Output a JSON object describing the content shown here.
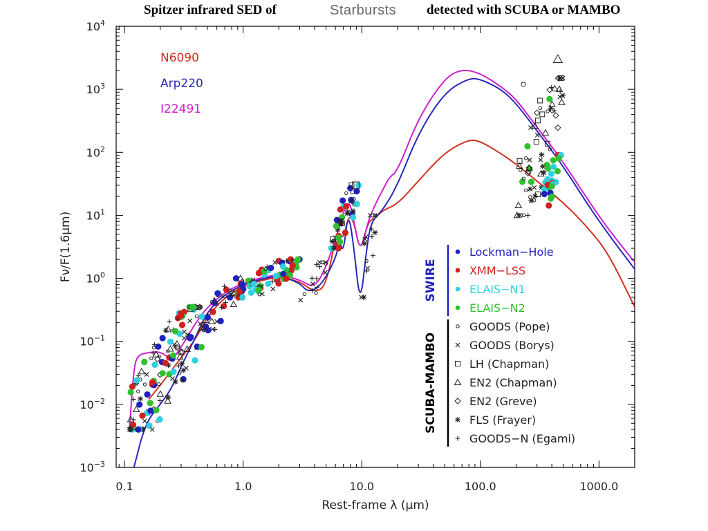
{
  "title": {
    "part1": "Spitzer infrared SED of",
    "part2": "Starbursts",
    "part3": "detected with SCUBA or MAMBO"
  },
  "chart_data": {
    "type": "line",
    "xlabel": "Rest-frame λ (μm)",
    "ylabel": "Fν/F(1.6μm)",
    "xscale": "log",
    "yscale": "log",
    "xlim": [
      0.085,
      2000
    ],
    "ylim": [
      0.001,
      10000
    ],
    "xticks": [
      {
        "value": 0.1,
        "label": "0.1"
      },
      {
        "value": 1,
        "label": "1.0"
      },
      {
        "value": 10,
        "label": "10.0"
      },
      {
        "value": 100,
        "label": "100.0"
      },
      {
        "value": 1000,
        "label": "1000.0"
      }
    ],
    "yticks": [
      {
        "value": 0.001,
        "base": "10",
        "exp": "−3"
      },
      {
        "value": 0.01,
        "base": "10",
        "exp": "−2"
      },
      {
        "value": 0.1,
        "base": "10",
        "exp": "−1"
      },
      {
        "value": 1,
        "base": "10",
        "exp": "0"
      },
      {
        "value": 10,
        "base": "10",
        "exp": "1"
      },
      {
        "value": 100,
        "base": "10",
        "exp": "2"
      },
      {
        "value": 1000,
        "base": "10",
        "exp": "3"
      },
      {
        "value": 10000,
        "base": "10",
        "exp": "4"
      }
    ],
    "series": [
      {
        "name": "N6090",
        "color": "#d03020",
        "points": [
          [
            0.16,
            0.012
          ],
          [
            0.2,
            0.02
          ],
          [
            0.25,
            0.035
          ],
          [
            0.3,
            0.055
          ],
          [
            0.4,
            0.11
          ],
          [
            0.5,
            0.25
          ],
          [
            0.7,
            0.5
          ],
          [
            1.0,
            0.75
          ],
          [
            1.5,
            0.95
          ],
          [
            2.0,
            1.05
          ],
          [
            3.0,
            0.9
          ],
          [
            4.0,
            0.6
          ],
          [
            5.0,
            0.75
          ],
          [
            6.2,
            6.0
          ],
          [
            7.0,
            4.0
          ],
          [
            7.7,
            10.0
          ],
          [
            8.6,
            8.0
          ],
          [
            9.7,
            2.5
          ],
          [
            11.3,
            8.0
          ],
          [
            13,
            9.0
          ],
          [
            15,
            12
          ],
          [
            20,
            15
          ],
          [
            30,
            35
          ],
          [
            50,
            100
          ],
          [
            80,
            160
          ],
          [
            100,
            150
          ],
          [
            150,
            95
          ],
          [
            200,
            65
          ],
          [
            300,
            35
          ],
          [
            500,
            16
          ],
          [
            800,
            6.5
          ],
          [
            1200,
            2.5
          ],
          [
            2000,
            0.35
          ]
        ]
      },
      {
        "name": "Arp220",
        "color": "#2828b8",
        "points": [
          [
            0.12,
            0.001
          ],
          [
            0.15,
            0.005
          ],
          [
            0.2,
            0.01
          ],
          [
            0.25,
            0.018
          ],
          [
            0.3,
            0.04
          ],
          [
            0.4,
            0.12
          ],
          [
            0.5,
            0.3
          ],
          [
            0.7,
            0.55
          ],
          [
            1.0,
            0.8
          ],
          [
            1.5,
            1.0
          ],
          [
            2.0,
            1.1
          ],
          [
            3.0,
            0.85
          ],
          [
            3.5,
            0.6
          ],
          [
            4.5,
            0.75
          ],
          [
            6.0,
            2.0
          ],
          [
            6.5,
            4.0
          ],
          [
            7.0,
            2.5
          ],
          [
            7.7,
            12.0
          ],
          [
            8.6,
            3.0
          ],
          [
            9.7,
            0.35
          ],
          [
            11.0,
            3.0
          ],
          [
            12,
            8.0
          ],
          [
            15,
            12
          ],
          [
            20,
            30
          ],
          [
            30,
            200
          ],
          [
            50,
            900
          ],
          [
            80,
            1500
          ],
          [
            100,
            1450
          ],
          [
            150,
            1000
          ],
          [
            200,
            600
          ],
          [
            300,
            220
          ],
          [
            500,
            60
          ],
          [
            800,
            15
          ],
          [
            1200,
            5
          ],
          [
            2000,
            1.4
          ]
        ]
      },
      {
        "name": "I22491",
        "color": "#cc20cc",
        "points": [
          [
            0.11,
            0.004
          ],
          [
            0.12,
            0.04
          ],
          [
            0.13,
            0.06
          ],
          [
            0.15,
            0.065
          ],
          [
            0.2,
            0.07
          ],
          [
            0.25,
            0.05
          ],
          [
            0.3,
            0.08
          ],
          [
            0.4,
            0.2
          ],
          [
            0.5,
            0.35
          ],
          [
            0.7,
            0.6
          ],
          [
            1.0,
            0.85
          ],
          [
            1.5,
            1.05
          ],
          [
            2.0,
            1.15
          ],
          [
            3.0,
            0.95
          ],
          [
            4.0,
            0.7
          ],
          [
            5.0,
            1.5
          ],
          [
            6.2,
            5.0
          ],
          [
            7.7,
            20.0
          ],
          [
            8.6,
            8.0
          ],
          [
            9.7,
            2.5
          ],
          [
            11.3,
            8.0
          ],
          [
            13,
            15
          ],
          [
            15,
            25
          ],
          [
            17,
            40
          ],
          [
            20,
            50
          ],
          [
            30,
            350
          ],
          [
            50,
            1500
          ],
          [
            70,
            2100
          ],
          [
            100,
            1800
          ],
          [
            150,
            1100
          ],
          [
            200,
            700
          ],
          [
            300,
            250
          ],
          [
            500,
            70
          ],
          [
            800,
            18
          ],
          [
            1200,
            6
          ],
          [
            2000,
            1.8
          ]
        ]
      }
    ],
    "curve_legend": [
      {
        "name": "N6090",
        "color": "#d03020"
      },
      {
        "name": "Arp220",
        "color": "#2828b8"
      },
      {
        "name": "I22491",
        "color": "#cc20cc"
      }
    ],
    "legend_groups": [
      {
        "label": "SWIRE",
        "color": "#2020c0",
        "bar_color": "#2020c0",
        "entries": [
          {
            "name": "Lockman−Hole",
            "marker": "dot",
            "color": "#2020c0"
          },
          {
            "name": "XMM−LSS",
            "marker": "dot",
            "color": "#d02020"
          },
          {
            "name": "ELAIS−N1",
            "marker": "dot",
            "color": "#30d0e0"
          },
          {
            "name": "ELAIS−N2",
            "marker": "dot",
            "color": "#30c030"
          }
        ]
      },
      {
        "label": "SCUBA-MAMBO",
        "color": "#000000",
        "bar_color": "#000000",
        "entries": [
          {
            "name": "GOODS (Pope)",
            "marker": "circle",
            "color": "#202020"
          },
          {
            "name": "GOODS (Borys)",
            "marker": "x",
            "color": "#202020"
          },
          {
            "name": "LH (Chapman)",
            "marker": "square",
            "color": "#202020"
          },
          {
            "name": "EN2 (Chapman)",
            "marker": "triangle",
            "color": "#202020"
          },
          {
            "name": "EN2 (Greve)",
            "marker": "diamond",
            "color": "#202020"
          },
          {
            "name": "FLS (Frayer)",
            "marker": "star",
            "color": "#202020"
          },
          {
            "name": "GOODS−N (Egami)",
            "marker": "plus",
            "color": "#202020"
          }
        ]
      }
    ],
    "clusters": [
      {
        "x_range": [
          0.11,
          0.45
        ],
        "y_range": [
          0.004,
          0.35
        ],
        "count": 140,
        "types": [
          "dot-blue",
          "dot-red",
          "dot-cyan",
          "dot-green",
          "circle",
          "x",
          "triangle",
          "diamond",
          "star",
          "plus"
        ]
      },
      {
        "x_range": [
          0.45,
          1.0
        ],
        "y_range": [
          0.15,
          1.0
        ],
        "count": 40,
        "types": [
          "dot-blue",
          "dot-red",
          "circle",
          "x",
          "plus",
          "triangle"
        ]
      },
      {
        "x_range": [
          0.9,
          3.0
        ],
        "y_range": [
          0.5,
          2.0
        ],
        "count": 70,
        "types": [
          "dot-blue",
          "dot-red",
          "dot-cyan",
          "dot-green",
          "circle",
          "x",
          "plus"
        ]
      },
      {
        "x_range": [
          3.0,
          5.0
        ],
        "y_range": [
          0.35,
          1.8
        ],
        "count": 15,
        "types": [
          "x",
          "circle",
          "plus"
        ]
      },
      {
        "x_range": [
          5.5,
          9.5
        ],
        "y_range": [
          3.0,
          30.0
        ],
        "count": 45,
        "types": [
          "dot-blue",
          "dot-red",
          "dot-cyan",
          "dot-green",
          "square",
          "x",
          "circle",
          "star"
        ]
      },
      {
        "x_range": [
          9.5,
          13.0
        ],
        "y_range": [
          0.5,
          10.0
        ],
        "count": 15,
        "types": [
          "x",
          "circle",
          "star",
          "plus"
        ]
      },
      {
        "x_range": [
          200,
          500
        ],
        "y_range": [
          10,
          1500
        ],
        "count": 70,
        "types": [
          "circle",
          "x",
          "diamond",
          "star",
          "square",
          "triangle",
          "plus",
          "dot-green"
        ]
      },
      {
        "x_range": [
          330,
          480
        ],
        "y_range": [
          14,
          90
        ],
        "count": 25,
        "types": [
          "dot-blue",
          "dot-red",
          "dot-cyan",
          "dot-green"
        ]
      }
    ],
    "extra_points": [
      {
        "x": 450,
        "y": 3000,
        "type": "triangle"
      },
      {
        "x": 8.9,
        "y": 30,
        "type": "square"
      },
      {
        "x": 230,
        "y": 1200,
        "type": "circle"
      }
    ]
  }
}
